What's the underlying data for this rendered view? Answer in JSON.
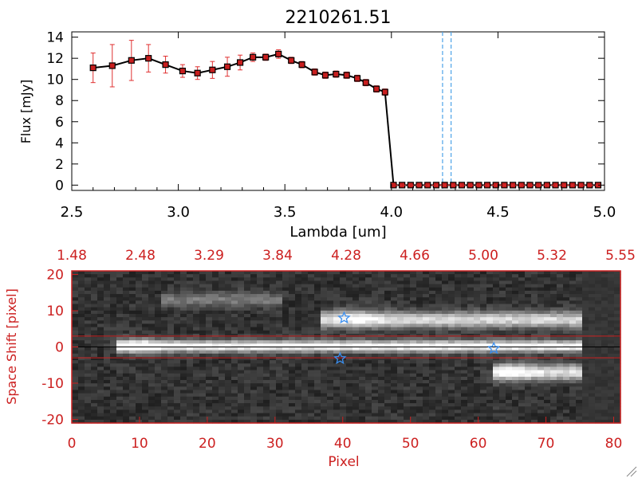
{
  "chart_data": [
    {
      "type": "line",
      "title": "2210261.51",
      "xlabel": "Lambda [um]",
      "ylabel": "Flux [mJy]",
      "xlim": [
        2.5,
        5.0
      ],
      "ylim": [
        -0.5,
        14.5
      ],
      "xticks": [
        "2.5",
        "3.0",
        "3.5",
        "4.0",
        "4.5",
        "5.0"
      ],
      "yticks": [
        "0",
        "2",
        "4",
        "6",
        "8",
        "10",
        "12",
        "14"
      ],
      "vlines": [
        4.24,
        4.28
      ],
      "series": [
        {
          "name": "flux",
          "x": [
            2.6,
            2.69,
            2.78,
            2.86,
            2.94,
            3.02,
            3.09,
            3.16,
            3.23,
            3.29,
            3.35,
            3.41,
            3.47,
            3.53,
            3.58,
            3.64,
            3.69,
            3.74,
            3.79,
            3.84,
            3.88,
            3.93,
            3.97,
            4.01,
            4.05,
            4.09,
            4.13,
            4.17,
            4.21,
            4.25,
            4.29,
            4.33,
            4.37,
            4.41,
            4.45,
            4.49,
            4.53,
            4.57,
            4.61,
            4.65,
            4.69,
            4.73,
            4.77,
            4.81,
            4.85,
            4.89,
            4.93,
            4.97
          ],
          "y": [
            11.1,
            11.3,
            11.8,
            12.0,
            11.4,
            10.8,
            10.6,
            10.9,
            11.2,
            11.6,
            12.1,
            12.1,
            12.4,
            11.8,
            11.4,
            10.7,
            10.4,
            10.5,
            10.4,
            10.1,
            9.7,
            9.1,
            8.8,
            0.0,
            0.0,
            0.0,
            0.0,
            0.0,
            0.0,
            0.0,
            0.0,
            0.0,
            0.0,
            0.0,
            0.0,
            0.0,
            0.0,
            0.0,
            0.0,
            0.0,
            0.0,
            0.0,
            0.0,
            0.0,
            0.0,
            0.0,
            0.0,
            0.0
          ],
          "yerr": [
            1.4,
            2.0,
            1.9,
            1.3,
            0.8,
            0.6,
            0.6,
            0.8,
            0.9,
            0.7,
            0.4,
            0.3,
            0.4,
            0.3,
            0.3,
            0.3,
            0.3,
            0.3,
            0.3,
            0.3,
            0.3,
            0.3,
            0.3,
            0.0,
            0,
            0,
            0,
            0,
            0,
            0,
            0,
            0,
            0,
            0,
            0,
            0,
            0,
            0,
            0,
            0,
            0,
            0,
            0,
            0,
            0,
            0,
            0,
            0
          ]
        }
      ]
    },
    {
      "type": "heatmap",
      "xlabel": "Pixel",
      "ylabel": "Space Shift [pixel]",
      "xlim": [
        0,
        81
      ],
      "ylim": [
        -21,
        21
      ],
      "xticks": [
        "0",
        "10",
        "20",
        "30",
        "40",
        "50",
        "60",
        "70",
        "80"
      ],
      "yticks": [
        "-20",
        "-10",
        "0",
        "10",
        "20"
      ],
      "top_xticks": [
        "1.48",
        "2.48",
        "3.29",
        "3.84",
        "4.28",
        "4.66",
        "5.00",
        "5.32",
        "5.55"
      ],
      "aperture_lines": [
        -3,
        3
      ],
      "center_line": 0,
      "markers": [
        {
          "x": 40.2,
          "y": 8.0,
          "symbol": "star"
        },
        {
          "x": 39.6,
          "y": -3.2,
          "symbol": "star"
        },
        {
          "x": 62.3,
          "y": -0.4,
          "symbol": "star"
        }
      ],
      "traces": [
        {
          "x0": 8,
          "x1": 75,
          "y": 0.2,
          "width": 1.6,
          "intensity": 0.82
        },
        {
          "x0": 38,
          "x1": 75,
          "y": 7.5,
          "width": 2.2,
          "intensity": 0.66
        },
        {
          "x0": 63,
          "x1": 75,
          "y": -7.0,
          "width": 2.2,
          "intensity": 0.7
        },
        {
          "x0": 14,
          "x1": 31,
          "y": 13.0,
          "width": 2.0,
          "intensity": 0.28
        }
      ],
      "blobs": [
        {
          "x": 10,
          "y": 0.2,
          "rx": 3.0,
          "ry": 2.2,
          "intensity": 0.32
        },
        {
          "x": 42,
          "y": 8.0,
          "rx": 4.0,
          "ry": 3.2,
          "intensity": 0.18
        },
        {
          "x": 65,
          "y": -7.0,
          "rx": 3.0,
          "ry": 3.0,
          "intensity": 0.2
        }
      ]
    }
  ],
  "colors": {
    "axis_red": "#cc2020",
    "marker_red": "#c81e1e",
    "error_red": "#e03030",
    "line_black": "#000000",
    "vline_blue": "#4da3e8",
    "star_blue": "#3a8ff0"
  }
}
